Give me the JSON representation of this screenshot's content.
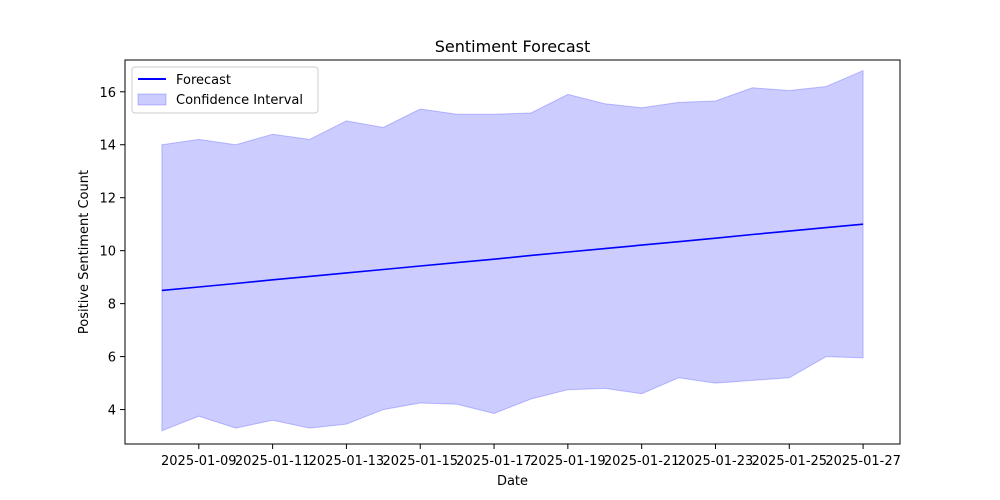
{
  "chart_data": {
    "type": "line",
    "title": "Sentiment Forecast",
    "xlabel": "Date",
    "ylabel": "Positive Sentiment Count",
    "x": [
      "2025-01-08",
      "2025-01-09",
      "2025-01-10",
      "2025-01-11",
      "2025-01-12",
      "2025-01-13",
      "2025-01-14",
      "2025-01-15",
      "2025-01-16",
      "2025-01-17",
      "2025-01-18",
      "2025-01-19",
      "2025-01-20",
      "2025-01-21",
      "2025-01-22",
      "2025-01-23",
      "2025-01-24",
      "2025-01-25",
      "2025-01-26",
      "2025-01-27"
    ],
    "x_ticks": [
      "2025-01-09",
      "2025-01-11",
      "2025-01-13",
      "2025-01-15",
      "2025-01-17",
      "2025-01-19",
      "2025-01-21",
      "2025-01-23",
      "2025-01-25",
      "2025-01-27"
    ],
    "xlim": [
      "2025-01-07",
      "2025-01-28"
    ],
    "ylim": [
      2.7,
      17.2
    ],
    "y_ticks": [
      4,
      6,
      8,
      10,
      12,
      14,
      16
    ],
    "series": [
      {
        "name": "Forecast",
        "color": "#0000ff",
        "values": [
          8.5,
          8.63,
          8.76,
          8.9,
          9.03,
          9.16,
          9.29,
          9.42,
          9.55,
          9.68,
          9.82,
          9.95,
          10.08,
          10.21,
          10.34,
          10.47,
          10.61,
          10.74,
          10.87,
          11.0
        ]
      }
    ],
    "band": {
      "name": "Confidence Interval",
      "color": "#0000ff",
      "opacity": 0.2,
      "upper": [
        14.0,
        14.2,
        14.0,
        14.4,
        14.2,
        14.9,
        14.65,
        15.35,
        15.15,
        15.15,
        15.2,
        15.9,
        15.55,
        15.4,
        15.6,
        15.65,
        16.15,
        16.05,
        16.2,
        16.8
      ],
      "lower": [
        3.2,
        3.75,
        3.3,
        3.6,
        3.3,
        3.45,
        4.0,
        4.25,
        4.2,
        3.85,
        4.4,
        4.75,
        4.8,
        4.6,
        5.2,
        5.0,
        5.1,
        5.2,
        6.0,
        5.95
      ]
    },
    "legend": {
      "position": "top-left",
      "entries": [
        "Forecast",
        "Confidence Interval"
      ]
    },
    "grid": false
  }
}
